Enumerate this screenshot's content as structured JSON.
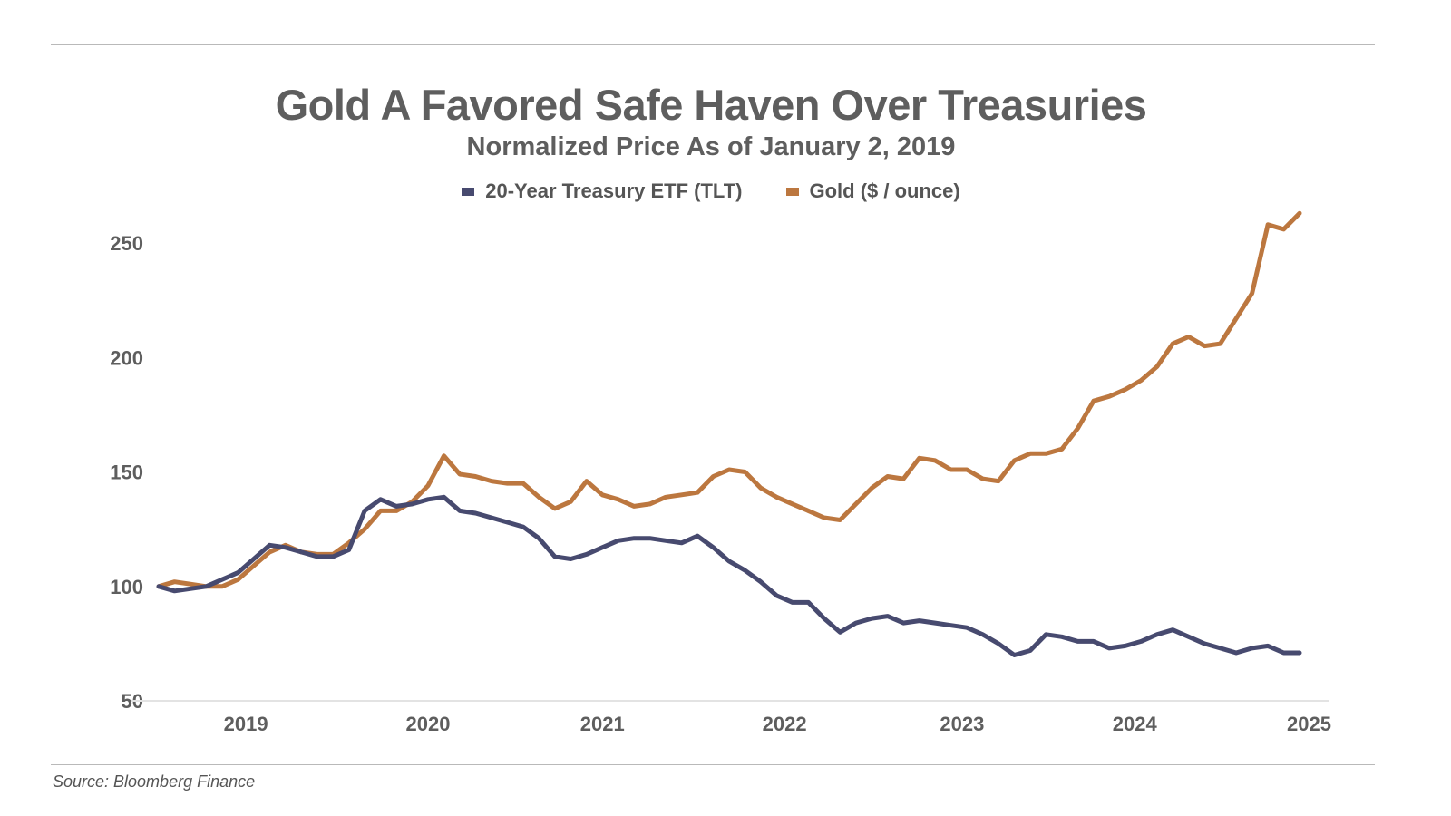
{
  "chart_data": {
    "type": "line",
    "title": "Gold A Favored Safe Haven Over Treasuries",
    "subtitle": "Normalized Price As of January 2, 2019",
    "xlabel": "",
    "ylabel": "",
    "x_start": "2019-01",
    "x_end": "2025-01",
    "x_frequency": "monthly",
    "xticks": [
      "2019",
      "2020",
      "2021",
      "2022",
      "2023",
      "2024",
      "2025"
    ],
    "xtick_positions": [
      5.5,
      17,
      28,
      39.5,
      50.7,
      61.6,
      72.6
    ],
    "yticks": [
      50,
      100,
      150,
      200,
      250
    ],
    "ylim": [
      50,
      250
    ],
    "grid": false,
    "legend_position": "top-center",
    "series": [
      {
        "name": "20-Year Treasury ETF (TLT)",
        "color": "#474a6f",
        "values": [
          100,
          98,
          99,
          100,
          103,
          106,
          112,
          118,
          117,
          115,
          113,
          113,
          116,
          133,
          138,
          135,
          136,
          138,
          139,
          133,
          132,
          130,
          128,
          126,
          121,
          113,
          112,
          114,
          117,
          120,
          121,
          121,
          120,
          119,
          122,
          117,
          111,
          107,
          102,
          96,
          93,
          93,
          86,
          80,
          84,
          86,
          87,
          84,
          85,
          84,
          83,
          82,
          79,
          75,
          70,
          72,
          79,
          78,
          76,
          76,
          73,
          74,
          76,
          79,
          81,
          78,
          75,
          73,
          71,
          73,
          74,
          71,
          71
        ]
      },
      {
        "name": "Gold ($ / ounce)",
        "color": "#bc773f",
        "values": [
          100,
          102,
          101,
          100,
          100,
          103,
          109,
          115,
          118,
          115,
          114,
          114,
          119,
          125,
          133,
          133,
          137,
          144,
          157,
          149,
          148,
          146,
          145,
          145,
          139,
          134,
          137,
          146,
          140,
          138,
          135,
          136,
          139,
          140,
          141,
          148,
          151,
          150,
          143,
          139,
          136,
          133,
          130,
          129,
          136,
          143,
          148,
          147,
          156,
          155,
          151,
          151,
          147,
          146,
          155,
          158,
          158,
          160,
          169,
          181,
          183,
          186,
          190,
          196,
          206,
          209,
          205,
          206,
          217,
          228,
          258,
          256,
          263
        ]
      }
    ]
  },
  "source": "Source: Bloomberg Finance"
}
